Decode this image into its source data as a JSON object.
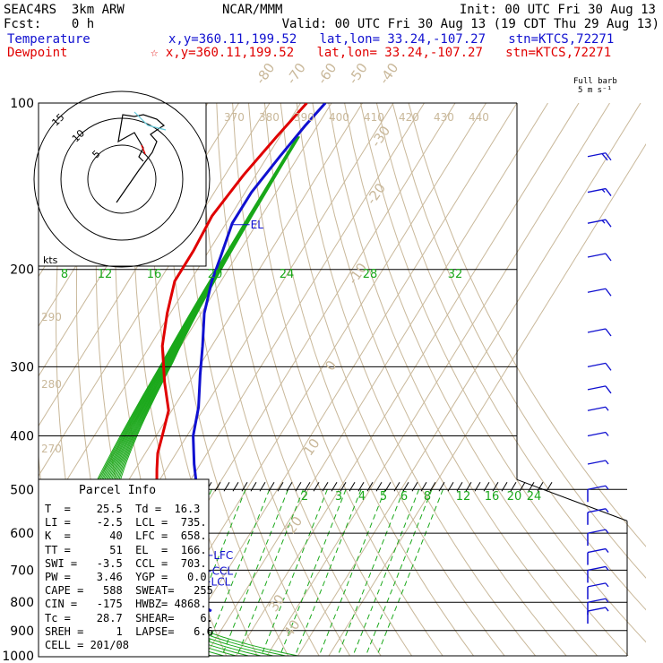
{
  "header": {
    "model": "SEAC4RS  3km ARW",
    "org": "NCAR/MMM",
    "init": "Init: 00 UTC Fri 30 Aug 13",
    "fcst": "Fcst:    0 h",
    "valid": "Valid: 00 UTC Fri 30 Aug 13 (19 CDT Thu 29 Aug 13)",
    "temp_label": "Temperature",
    "temp_info": "x,y=360.11,199.52   lat,lon= 33.24,-107.27   stn=KTCS,72271",
    "dew_label": "Dewpoint",
    "dew_info": "x,y=360.11,199.52   lat,lon= 33.24,-107.27   stn=KTCS,72271",
    "barb_title": "Full barb",
    "barb_unit": "5 m s⁻¹"
  },
  "parcel_info": {
    "title": "Parcel Info",
    "lines": [
      "T  =    25.5  Td =  16.3",
      "LI =    -2.5  LCL =  735.",
      "K  =      40  LFC =  658.",
      "TT =      51  EL  =  166.",
      "SWI =   -3.5  CCL =  703.",
      "PW =    3.46  YGP =   0.0",
      "CAPE =   588  SWEAT=   255",
      "CIN =   -175  HWBZ= 4868.",
      "Tc =    28.7  SHEAR=    6.",
      "SREH =     1  LAPSE=   6.6",
      "CELL = 201/08"
    ]
  },
  "chart_data": {
    "type": "skew-t",
    "pressure_axis": {
      "labels": [
        "100",
        "200",
        "300",
        "400",
        "500",
        "600",
        "700",
        "800",
        "900",
        "1000"
      ]
    },
    "isotherm_labels": [
      {
        "text": "-80",
        "t": -80,
        "p": 100
      },
      {
        "text": "-70",
        "t": -70,
        "p": 100
      },
      {
        "text": "-60",
        "t": -60,
        "p": 100
      },
      {
        "text": "-50",
        "t": -50,
        "p": 100
      },
      {
        "text": "-40",
        "t": -40,
        "p": 100
      },
      {
        "text": "-30",
        "t": -30,
        "p": 130
      },
      {
        "text": "-20",
        "t": -20,
        "p": 165
      },
      {
        "text": "-10",
        "t": -10,
        "p": 230
      },
      {
        "text": "0",
        "t": 0,
        "p": 330
      },
      {
        "text": "10",
        "t": 10,
        "p": 470
      },
      {
        "text": "20",
        "t": 20,
        "p": 650
      },
      {
        "text": "30",
        "t": 30,
        "p": 900
      },
      {
        "text": "40",
        "t": 40,
        "p": 1000
      }
    ],
    "theta_e_labels": [
      {
        "text": "370",
        "t": -42,
        "p": 128
      },
      {
        "text": "380",
        "t": -38,
        "p": 128
      },
      {
        "text": "390",
        "t": -33,
        "p": 128
      },
      {
        "text": "400",
        "t": -28,
        "p": 128
      },
      {
        "text": "410",
        "t": -25,
        "p": 128
      },
      {
        "text": "420",
        "t": -21,
        "p": 128
      },
      {
        "text": "430",
        "t": -17,
        "p": 128
      },
      {
        "text": "440",
        "t": -13,
        "p": 128
      }
    ],
    "theta_labels": [
      {
        "text": "290",
        "t": -70,
        "p": 270
      },
      {
        "text": "280",
        "t": -70,
        "p": 340
      },
      {
        "text": "270",
        "t": -75,
        "p": 470
      }
    ],
    "mixing_ratio_labels_upper": [
      {
        "text": "8",
        "t": -56,
        "p": 205
      },
      {
        "text": "12",
        "t": -51,
        "p": 205
      },
      {
        "text": "16",
        "t": -45,
        "p": 205
      },
      {
        "text": "20",
        "t": -38,
        "p": 205
      },
      {
        "text": "24",
        "t": -29,
        "p": 205
      },
      {
        "text": "28",
        "t": -19,
        "p": 205
      },
      {
        "text": "32",
        "t": -9,
        "p": 205
      }
    ],
    "mixing_ratio_labels_lower": [
      {
        "text": "2",
        "t": -9,
        "p": 555
      },
      {
        "text": "3",
        "t": -5,
        "p": 555
      },
      {
        "text": "4",
        "t": -1,
        "p": 555
      },
      {
        "text": "5",
        "t": 1,
        "p": 555
      },
      {
        "text": "6",
        "t": 3,
        "p": 555
      },
      {
        "text": "8",
        "t": 5,
        "p": 555
      },
      {
        "text": "12",
        "t": 9,
        "p": 555
      },
      {
        "text": "16",
        "t": 13,
        "p": 555
      },
      {
        "text": "20",
        "t": 16,
        "p": 555
      },
      {
        "text": "24",
        "t": 19,
        "p": 555
      }
    ],
    "series": [
      {
        "name": "Temperature",
        "color": "#1010d0",
        "points": [
          [
            -62,
            100
          ],
          [
            -64,
            110
          ],
          [
            -66,
            125
          ],
          [
            -68,
            145
          ],
          [
            -68,
            165
          ],
          [
            -65,
            190
          ],
          [
            -63,
            210
          ],
          [
            -59,
            240
          ],
          [
            -53,
            275
          ],
          [
            -48,
            310
          ],
          [
            -42,
            355
          ],
          [
            -38,
            400
          ],
          [
            -32,
            450
          ],
          [
            -26,
            500
          ],
          [
            -21,
            550
          ],
          [
            -17,
            600
          ],
          [
            -14,
            650
          ],
          [
            -11,
            700
          ],
          [
            -9,
            735
          ],
          [
            -6,
            770
          ],
          [
            -2,
            800
          ],
          [
            0,
            815
          ],
          [
            2,
            825
          ],
          [
            3,
            830
          ]
        ]
      },
      {
        "name": "Dewpoint",
        "color": "#e00000",
        "points": [
          [
            -68,
            100
          ],
          [
            -71,
            115
          ],
          [
            -74,
            135
          ],
          [
            -76,
            160
          ],
          [
            -75,
            185
          ],
          [
            -75,
            210
          ],
          [
            -71,
            240
          ],
          [
            -66,
            275
          ],
          [
            -58,
            320
          ],
          [
            -51,
            360
          ],
          [
            -48,
            400
          ],
          [
            -46,
            430
          ],
          [
            -43,
            460
          ],
          [
            -40,
            490
          ],
          [
            -45,
            515
          ],
          [
            -48,
            540
          ],
          [
            -45,
            565
          ],
          [
            -39,
            600
          ],
          [
            -34,
            650
          ],
          [
            -31,
            700
          ],
          [
            -28,
            735
          ],
          [
            -22,
            760
          ],
          [
            -21,
            790
          ],
          [
            -20,
            830
          ]
        ]
      }
    ],
    "level_marks": [
      {
        "text": "EL",
        "p": 166
      },
      {
        "text": "LFC",
        "p": 658
      },
      {
        "text": "CCL",
        "p": 703
      },
      {
        "text": "LCL",
        "p": 735
      },
      {
        "text": "M",
        "p": 500
      }
    ],
    "hodograph": {
      "ring_labels": [
        "5",
        "10",
        "15"
      ],
      "unit": "kts"
    },
    "wind_barbs": [
      {
        "p": 125,
        "dir": 290,
        "spd": 20
      },
      {
        "p": 145,
        "dir": 285,
        "spd": 15
      },
      {
        "p": 165,
        "dir": 290,
        "spd": 15
      },
      {
        "p": 190,
        "dir": 300,
        "spd": 10
      },
      {
        "p": 220,
        "dir": 300,
        "spd": 10
      },
      {
        "p": 260,
        "dir": 290,
        "spd": 10
      },
      {
        "p": 300,
        "dir": 280,
        "spd": 10
      },
      {
        "p": 330,
        "dir": 270,
        "spd": 10
      },
      {
        "p": 360,
        "dir": 270,
        "spd": 5
      },
      {
        "p": 400,
        "dir": 260,
        "spd": 5
      },
      {
        "p": 450,
        "dir": 250,
        "spd": 5
      },
      {
        "p": 500,
        "dir": 240,
        "spd": 5
      },
      {
        "p": 550,
        "dir": 200,
        "spd": 5
      },
      {
        "p": 600,
        "dir": 170,
        "spd": 5
      },
      {
        "p": 650,
        "dir": 160,
        "spd": 5
      },
      {
        "p": 700,
        "dir": 160,
        "spd": 5
      },
      {
        "p": 750,
        "dir": 150,
        "spd": 5
      },
      {
        "p": 800,
        "dir": 160,
        "spd": 5
      },
      {
        "p": 830,
        "dir": 170,
        "spd": 5
      }
    ]
  }
}
